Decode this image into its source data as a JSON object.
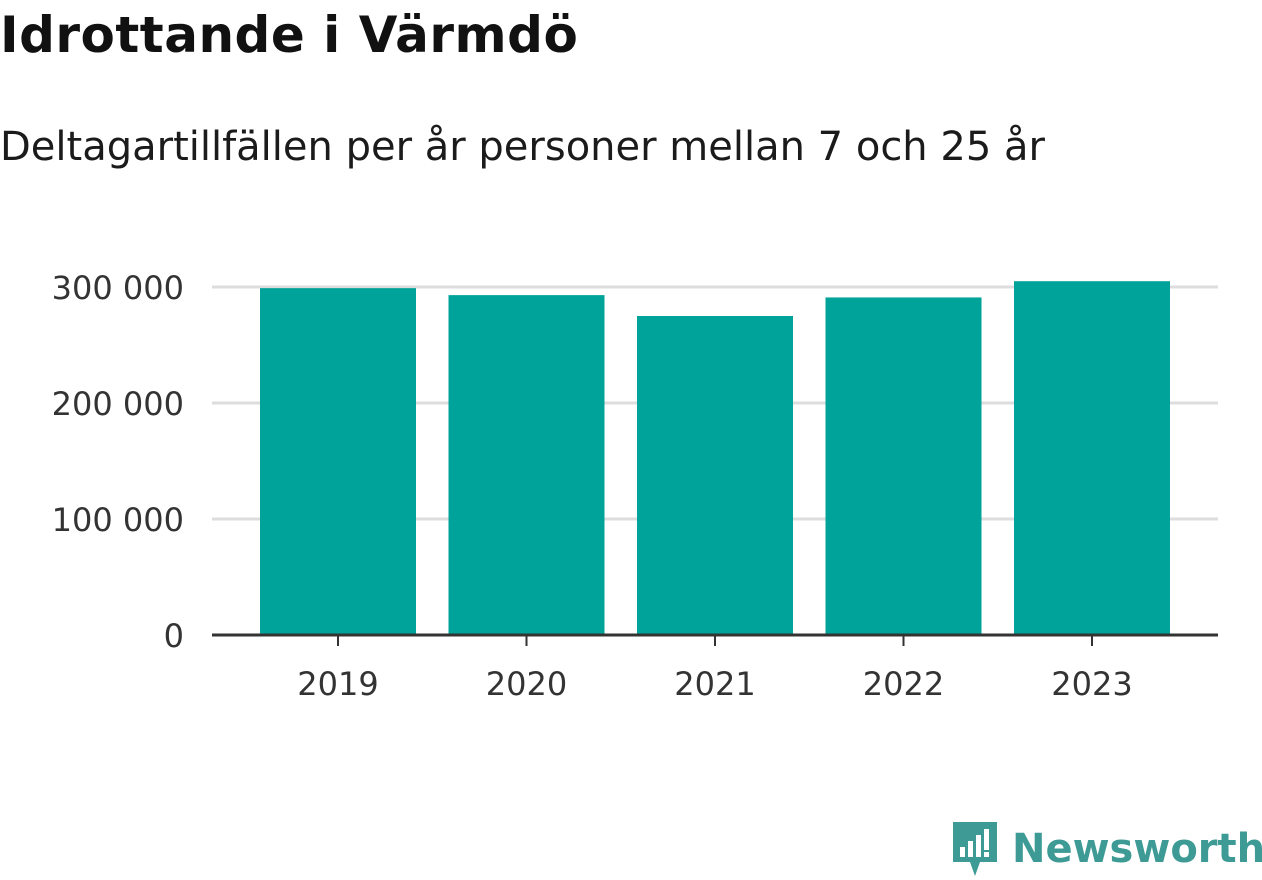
{
  "title": "Idrottande i Värmdö",
  "subtitle": "Deltagartillfällen per år personer mellan 7 och 25 år",
  "brand": {
    "name": "Newsworthy",
    "icon": "newsworthy-chart-icon",
    "color": "#3d9a94"
  },
  "chart_data": {
    "type": "bar",
    "title": "Idrottande i Värmdö",
    "subtitle": "Deltagartillfällen per år personer mellan 7 och 25 år",
    "categories": [
      "2019",
      "2020",
      "2021",
      "2022",
      "2023"
    ],
    "values": [
      299000,
      293000,
      275000,
      291000,
      305000
    ],
    "ylim": [
      0,
      300000
    ],
    "yticks": [
      0,
      100000,
      200000,
      300000
    ],
    "ytick_labels": [
      "0",
      "100 000",
      "200 000",
      "300 000"
    ],
    "xlabel": "",
    "ylabel": "",
    "grid": true,
    "bar_color": "#00a39a",
    "grid_color": "#dddddd",
    "axis_color": "#333333",
    "legend": "none"
  }
}
